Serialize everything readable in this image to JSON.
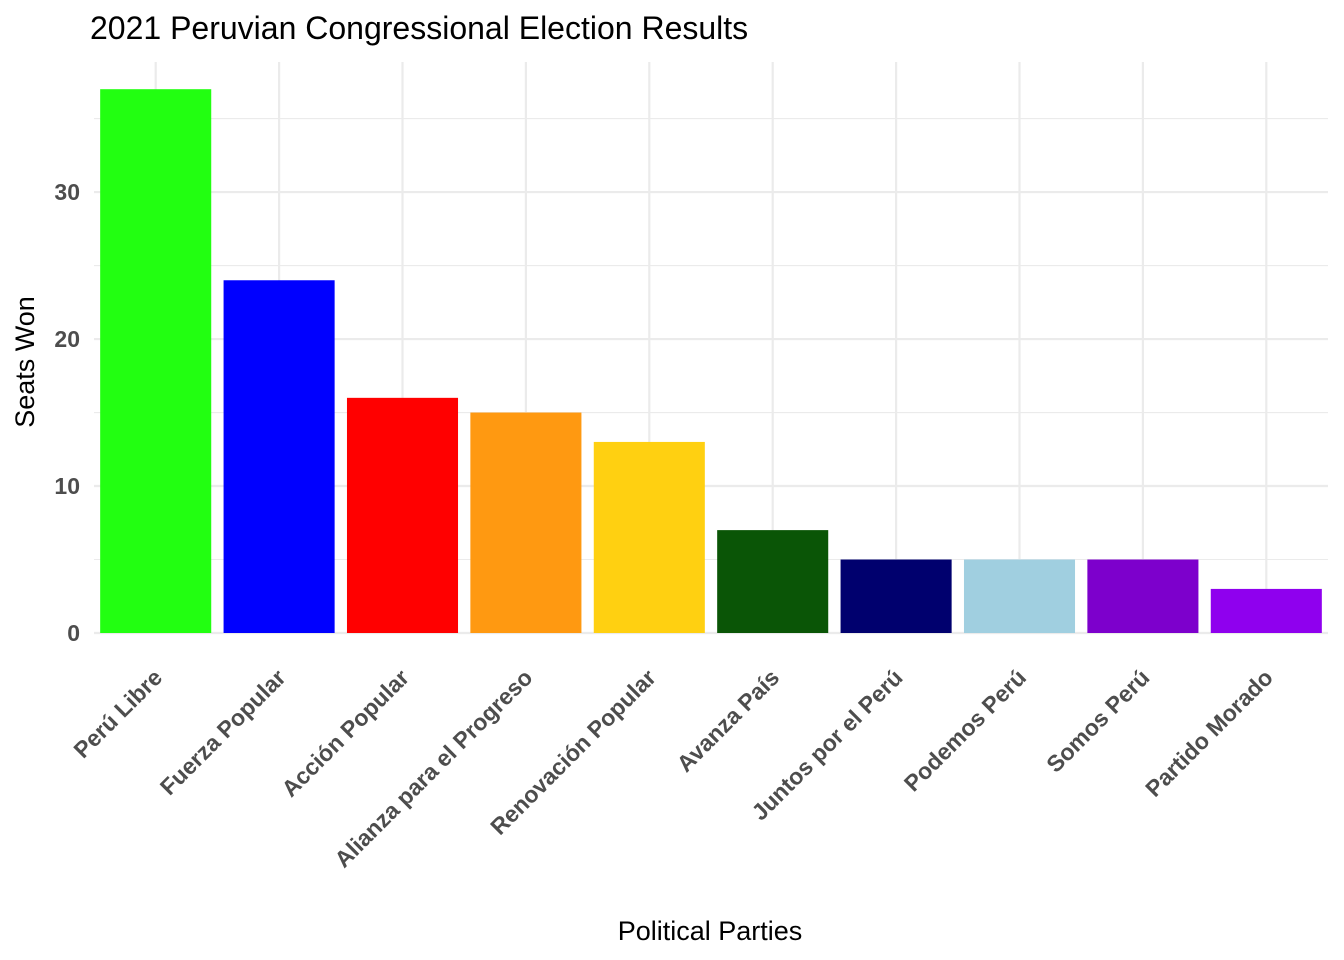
{
  "chart_data": {
    "type": "bar",
    "title": "2021 Peruvian Congressional Election Results",
    "xlabel": "Political Parties",
    "ylabel": "Seats Won",
    "categories": [
      "Perú Libre",
      "Fuerza Popular",
      "Acción Popular",
      "Alianza para el Progreso",
      "Renovación Popular",
      "Avanza País",
      "Juntos por el Perú",
      "Podemos Perú",
      "Somos Perú",
      "Partido Morado"
    ],
    "values": [
      37,
      24,
      16,
      15,
      13,
      7,
      5,
      5,
      5,
      3
    ],
    "colors": [
      "#22ff11",
      "#0000ff",
      "#ff0000",
      "#ff9911",
      "#ffd011",
      "#0a5506",
      "#00006e",
      "#a0cfe0",
      "#7d00cc",
      "#8f00ee"
    ],
    "y_ticks": [
      0,
      10,
      20,
      30
    ],
    "ylim": [
      0,
      38.85
    ],
    "grid": true,
    "legend": "none"
  }
}
